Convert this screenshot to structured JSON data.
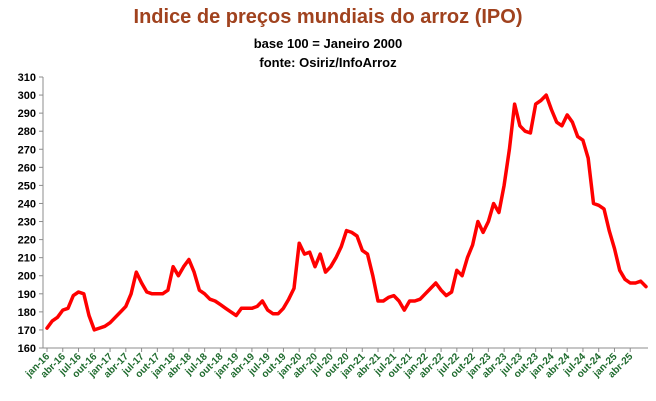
{
  "colors": {
    "title": "#A0421E",
    "line": "#FF0000",
    "xtick": "#1F6B2E",
    "axis": "#8C8C8C"
  },
  "chart_data": {
    "type": "line",
    "title": "Indice de preços mundiais do arroz (IPO)",
    "subtitle": "base 100 = Janeiro 2000",
    "source": "fonte: Osiriz/InfoArroz",
    "ylim": [
      160,
      310
    ],
    "yticks": [
      160,
      170,
      180,
      190,
      200,
      210,
      220,
      230,
      240,
      250,
      260,
      270,
      280,
      290,
      300,
      310
    ],
    "grid": false,
    "legend": "none",
    "xticks": [
      {
        "label": "jan-16",
        "month": 0
      },
      {
        "label": "abr-16",
        "month": 3
      },
      {
        "label": "jul-16",
        "month": 6
      },
      {
        "label": "out-16",
        "month": 9
      },
      {
        "label": "jan-17",
        "month": 12
      },
      {
        "label": "abr-17",
        "month": 15
      },
      {
        "label": "jul-17",
        "month": 18
      },
      {
        "label": "out-17",
        "month": 21
      },
      {
        "label": "jan-18",
        "month": 24
      },
      {
        "label": "abr-18",
        "month": 27
      },
      {
        "label": "jul-18",
        "month": 30
      },
      {
        "label": "out-18",
        "month": 33
      },
      {
        "label": "jan-19",
        "month": 36
      },
      {
        "label": "abr-19",
        "month": 39
      },
      {
        "label": "jul-19",
        "month": 42
      },
      {
        "label": "out-19",
        "month": 45
      },
      {
        "label": "jan-20",
        "month": 48
      },
      {
        "label": "abr-20",
        "month": 51
      },
      {
        "label": "jul-20",
        "month": 54
      },
      {
        "label": "out-20",
        "month": 57
      },
      {
        "label": "jan-21",
        "month": 60
      },
      {
        "label": "abr-21",
        "month": 63
      },
      {
        "label": "jul-21",
        "month": 66
      },
      {
        "label": "out-21",
        "month": 69
      },
      {
        "label": "jan-22",
        "month": 72
      },
      {
        "label": "abr-22",
        "month": 75
      },
      {
        "label": "jul-22",
        "month": 78
      },
      {
        "label": "out-22",
        "month": 81
      },
      {
        "label": "jan-23",
        "month": 84
      },
      {
        "label": "abr-23",
        "month": 87
      },
      {
        "label": "jul-23",
        "month": 90
      },
      {
        "label": "out-23",
        "month": 93
      },
      {
        "label": "jan-24",
        "month": 96
      },
      {
        "label": "abr-24",
        "month": 99
      },
      {
        "label": "jul-24",
        "month": 102
      },
      {
        "label": "out-24",
        "month": 105
      },
      {
        "label": "jan-25",
        "month": 108
      },
      {
        "label": "abr-25",
        "month": 111
      }
    ],
    "x_last_month": 114,
    "series": [
      {
        "points": [
          [
            0,
            171
          ],
          [
            1,
            175
          ],
          [
            2,
            177
          ],
          [
            3,
            181
          ],
          [
            4,
            182
          ],
          [
            5,
            189
          ],
          [
            6,
            191
          ],
          [
            7,
            190
          ],
          [
            8,
            178
          ],
          [
            9,
            170
          ],
          [
            10,
            171
          ],
          [
            11,
            172
          ],
          [
            12,
            174
          ],
          [
            13,
            177
          ],
          [
            14,
            180
          ],
          [
            15,
            183
          ],
          [
            16,
            190
          ],
          [
            17,
            202
          ],
          [
            18,
            196
          ],
          [
            19,
            191
          ],
          [
            20,
            190
          ],
          [
            21,
            190
          ],
          [
            22,
            190
          ],
          [
            23,
            192
          ],
          [
            24,
            205
          ],
          [
            25,
            200
          ],
          [
            26,
            205
          ],
          [
            27,
            209
          ],
          [
            28,
            202
          ],
          [
            29,
            192
          ],
          [
            30,
            190
          ],
          [
            31,
            187
          ],
          [
            32,
            186
          ],
          [
            33,
            184
          ],
          [
            34,
            182
          ],
          [
            35,
            180
          ],
          [
            36,
            178
          ],
          [
            37,
            182
          ],
          [
            38,
            182
          ],
          [
            39,
            182
          ],
          [
            40,
            183
          ],
          [
            41,
            186
          ],
          [
            42,
            181
          ],
          [
            43,
            179
          ],
          [
            44,
            179
          ],
          [
            45,
            182
          ],
          [
            46,
            187
          ],
          [
            47,
            193
          ],
          [
            48,
            218
          ],
          [
            49,
            212
          ],
          [
            50,
            213
          ],
          [
            51,
            205
          ],
          [
            52,
            212
          ],
          [
            53,
            202
          ],
          [
            54,
            205
          ],
          [
            55,
            210
          ],
          [
            56,
            216
          ],
          [
            57,
            225
          ],
          [
            58,
            224
          ],
          [
            59,
            222
          ],
          [
            60,
            214
          ],
          [
            61,
            212
          ],
          [
            62,
            200
          ],
          [
            63,
            186
          ],
          [
            64,
            186
          ],
          [
            65,
            188
          ],
          [
            66,
            189
          ],
          [
            67,
            186
          ],
          [
            68,
            181
          ],
          [
            69,
            186
          ],
          [
            70,
            186
          ],
          [
            71,
            187
          ],
          [
            72,
            190
          ],
          [
            73,
            193
          ],
          [
            74,
            196
          ],
          [
            75,
            192
          ],
          [
            76,
            189
          ],
          [
            77,
            191
          ],
          [
            78,
            203
          ],
          [
            79,
            200
          ],
          [
            80,
            210
          ],
          [
            81,
            217
          ],
          [
            82,
            230
          ],
          [
            83,
            224
          ],
          [
            84,
            230
          ],
          [
            85,
            240
          ],
          [
            86,
            235
          ],
          [
            87,
            250
          ],
          [
            88,
            270
          ],
          [
            89,
            295
          ],
          [
            90,
            283
          ],
          [
            91,
            280
          ],
          [
            92,
            279
          ],
          [
            93,
            295
          ],
          [
            94,
            297
          ],
          [
            95,
            300
          ],
          [
            96,
            292
          ],
          [
            97,
            285
          ],
          [
            98,
            283
          ],
          [
            99,
            289
          ],
          [
            100,
            285
          ],
          [
            101,
            277
          ],
          [
            102,
            275
          ],
          [
            103,
            265
          ],
          [
            104,
            240
          ],
          [
            105,
            239
          ],
          [
            106,
            237
          ],
          [
            107,
            225
          ],
          [
            108,
            215
          ],
          [
            109,
            203
          ],
          [
            110,
            198
          ],
          [
            111,
            196
          ],
          [
            112,
            196
          ],
          [
            113,
            197
          ],
          [
            114,
            194
          ]
        ]
      }
    ]
  }
}
